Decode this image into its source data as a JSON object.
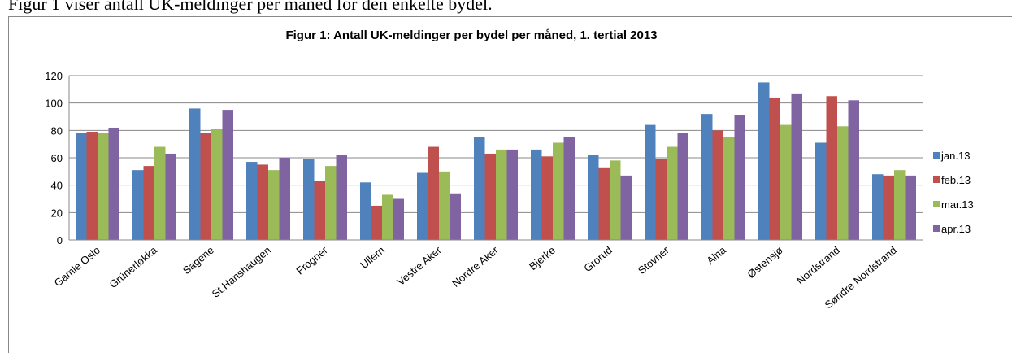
{
  "caption": "Figur 1 viser antall UK-meldinger per måned for den enkelte bydel.",
  "chart_data": {
    "type": "bar",
    "title": "Figur 1: Antall UK-meldinger per bydel per måned, 1. tertial 2013",
    "categories": [
      "Gamle Oslo",
      "Grünerløkka",
      "Sagene",
      "St.Hanshaugen",
      "Frogner",
      "Ullern",
      "Vestre Aker",
      "Nordre Aker",
      "Bjerke",
      "Grorud",
      "Stovner",
      "Alna",
      "Østensjø",
      "Nordstrand",
      "Søndre Nordstrand"
    ],
    "series": [
      {
        "name": "jan.13",
        "color": "#4f81bd",
        "values": [
          78,
          51,
          96,
          57,
          59,
          42,
          49,
          75,
          66,
          62,
          84,
          92,
          115,
          71,
          48
        ]
      },
      {
        "name": "feb.13",
        "color": "#c0504d",
        "values": [
          79,
          54,
          78,
          55,
          43,
          25,
          68,
          63,
          61,
          53,
          59,
          80,
          104,
          105,
          47
        ]
      },
      {
        "name": "mar.13",
        "color": "#9bbb59",
        "values": [
          78,
          68,
          81,
          51,
          54,
          33,
          50,
          66,
          71,
          58,
          68,
          75,
          84,
          83,
          51
        ]
      },
      {
        "name": "apr.13",
        "color": "#8064a2",
        "values": [
          82,
          63,
          95,
          60,
          62,
          30,
          34,
          66,
          75,
          47,
          78,
          91,
          107,
          102,
          47
        ]
      }
    ],
    "ylim": [
      0,
      120
    ],
    "yticks": [
      0,
      20,
      40,
      60,
      80,
      100,
      120
    ],
    "grid": true,
    "legend": "right"
  }
}
